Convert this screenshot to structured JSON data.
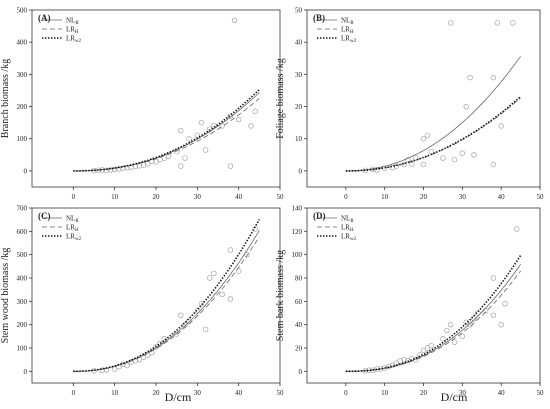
{
  "figure": {
    "xlabel": "D/cm"
  },
  "chart_data": [
    {
      "type": "scatter",
      "panel": "(A)",
      "ylabel": "Branch biomass /kg",
      "xlim": [
        -10,
        50
      ],
      "xticks": [
        0,
        10,
        20,
        30,
        40,
        50
      ],
      "ylim": [
        -50,
        500
      ],
      "yticks": [
        0,
        100,
        200,
        300,
        400,
        500
      ],
      "legend": [
        "NLR",
        "LRH",
        "LRw2"
      ],
      "points": [
        [
          5,
          1
        ],
        [
          6,
          2
        ],
        [
          7,
          3
        ],
        [
          8,
          2
        ],
        [
          9,
          3
        ],
        [
          10,
          5
        ],
        [
          11,
          6
        ],
        [
          12,
          8
        ],
        [
          13,
          10
        ],
        [
          14,
          12
        ],
        [
          15,
          14
        ],
        [
          16,
          16
        ],
        [
          17,
          18
        ],
        [
          18,
          22
        ],
        [
          19,
          30
        ],
        [
          20,
          28
        ],
        [
          21,
          35
        ],
        [
          22,
          40
        ],
        [
          23,
          45
        ],
        [
          25,
          60
        ],
        [
          26,
          15
        ],
        [
          26,
          125
        ],
        [
          27,
          40
        ],
        [
          28,
          100
        ],
        [
          30,
          110
        ],
        [
          31,
          150
        ],
        [
          32,
          65
        ],
        [
          33,
          130
        ],
        [
          34,
          140
        ],
        [
          36,
          140
        ],
        [
          38,
          170
        ],
        [
          38,
          15
        ],
        [
          39,
          468
        ],
        [
          40,
          160
        ],
        [
          43,
          140
        ],
        [
          44,
          185
        ]
      ],
      "curves": [
        {
          "name": "NLR",
          "style": "solid",
          "a": 0.052,
          "b": 2.22
        },
        {
          "name": "LRH",
          "style": "dashed",
          "a": 0.052,
          "b": 2.2
        },
        {
          "name": "LRw2",
          "style": "dotted",
          "a": 0.052,
          "b": 2.23
        }
      ]
    },
    {
      "type": "scatter",
      "panel": "(B)",
      "ylabel": "Foliage biomass /kg",
      "xlim": [
        -10,
        50
      ],
      "xticks": [
        0,
        10,
        20,
        30,
        40,
        50
      ],
      "ylim": [
        -5,
        50
      ],
      "yticks": [
        0,
        10,
        20,
        30,
        40,
        50
      ],
      "legend": [
        "NLR",
        "LRH",
        "LRw2"
      ],
      "points": [
        [
          5,
          0.2
        ],
        [
          7,
          0.5
        ],
        [
          8,
          0.3
        ],
        [
          10,
          0.8
        ],
        [
          12,
          1.0
        ],
        [
          13,
          1.5
        ],
        [
          15,
          2.0
        ],
        [
          16,
          3.5
        ],
        [
          17,
          2.0
        ],
        [
          18,
          4.0
        ],
        [
          20,
          10
        ],
        [
          20,
          2.0
        ],
        [
          21,
          11
        ],
        [
          22,
          6
        ],
        [
          25,
          4
        ],
        [
          27,
          46
        ],
        [
          28,
          3.5
        ],
        [
          30,
          5.5
        ],
        [
          31,
          20
        ],
        [
          32,
          29
        ],
        [
          33,
          5
        ],
        [
          38,
          29
        ],
        [
          38,
          2
        ],
        [
          39,
          46
        ],
        [
          40,
          14
        ],
        [
          43,
          46
        ]
      ],
      "curves": [
        {
          "name": "NLR",
          "style": "solid",
          "a": 0.01072,
          "b": 2.13
        },
        {
          "name": "LRH",
          "style": "dashed",
          "a": 0.00765,
          "b": 2.1
        },
        {
          "name": "LRw2",
          "style": "dotted",
          "a": 0.0078,
          "b": 2.1
        }
      ]
    },
    {
      "type": "scatter",
      "panel": "(C)",
      "ylabel": "Stem wood biomass /kg",
      "xlim": [
        -10,
        50
      ],
      "xticks": [
        0,
        10,
        20,
        30,
        40,
        50
      ],
      "ylim": [
        -50,
        700
      ],
      "yticks": [
        0,
        100,
        200,
        300,
        400,
        500,
        600,
        700
      ],
      "legend": [
        "NLR",
        "LRH",
        "LRw2"
      ],
      "points": [
        [
          5,
          2
        ],
        [
          7,
          5
        ],
        [
          8,
          6
        ],
        [
          10,
          10
        ],
        [
          11,
          20
        ],
        [
          12,
          30
        ],
        [
          13,
          25
        ],
        [
          14,
          40
        ],
        [
          15,
          45
        ],
        [
          16,
          50
        ],
        [
          17,
          60
        ],
        [
          18,
          70
        ],
        [
          19,
          80
        ],
        [
          20,
          105
        ],
        [
          21,
          120
        ],
        [
          22,
          140
        ],
        [
          25,
          160
        ],
        [
          26,
          240
        ],
        [
          27,
          200
        ],
        [
          28,
          215
        ],
        [
          30,
          260
        ],
        [
          31,
          290
        ],
        [
          32,
          180
        ],
        [
          33,
          400
        ],
        [
          34,
          420
        ],
        [
          36,
          330
        ],
        [
          38,
          310
        ],
        [
          38,
          520
        ],
        [
          40,
          430
        ],
        [
          42,
          500
        ],
        [
          44,
          610
        ]
      ],
      "curves": [
        {
          "name": "NLR",
          "style": "solid",
          "a": 0.134,
          "b": 2.21
        },
        {
          "name": "LRH",
          "style": "dashed",
          "a": 0.133,
          "b": 2.2
        },
        {
          "name": "LRw2",
          "style": "dotted",
          "a": 0.134,
          "b": 2.23
        }
      ]
    },
    {
      "type": "scatter",
      "panel": "(D)",
      "ylabel": "Stem bark biomass /kg",
      "xlim": [
        -10,
        50
      ],
      "xticks": [
        0,
        10,
        20,
        30,
        40,
        50
      ],
      "ylim": [
        -10,
        140
      ],
      "yticks": [
        0,
        20,
        40,
        60,
        80,
        100,
        120,
        140
      ],
      "legend": [
        "NLR",
        "LRH",
        "LRw2"
      ],
      "points": [
        [
          5,
          0.5
        ],
        [
          6,
          1
        ],
        [
          7,
          1
        ],
        [
          8,
          2
        ],
        [
          9,
          2
        ],
        [
          10,
          3
        ],
        [
          11,
          4
        ],
        [
          12,
          5
        ],
        [
          13,
          7
        ],
        [
          14,
          9
        ],
        [
          15,
          10
        ],
        [
          16,
          9
        ],
        [
          17,
          11
        ],
        [
          18,
          10
        ],
        [
          19,
          14
        ],
        [
          20,
          18
        ],
        [
          21,
          20
        ],
        [
          22,
          22
        ],
        [
          25,
          28
        ],
        [
          26,
          35
        ],
        [
          27,
          40
        ],
        [
          28,
          25
        ],
        [
          30,
          30
        ],
        [
          31,
          42
        ],
        [
          32,
          40
        ],
        [
          33,
          45
        ],
        [
          34,
          50
        ],
        [
          36,
          52
        ],
        [
          38,
          48
        ],
        [
          38,
          80
        ],
        [
          40,
          40
        ],
        [
          41,
          58
        ],
        [
          44,
          122
        ]
      ],
      "curves": [
        {
          "name": "NLR",
          "style": "solid",
          "a": 0.0115,
          "b": 2.36
        },
        {
          "name": "LRH",
          "style": "dashed",
          "a": 0.0112,
          "b": 2.35
        },
        {
          "name": "LRw2",
          "style": "dotted",
          "a": 0.012,
          "b": 2.37
        }
      ]
    }
  ]
}
